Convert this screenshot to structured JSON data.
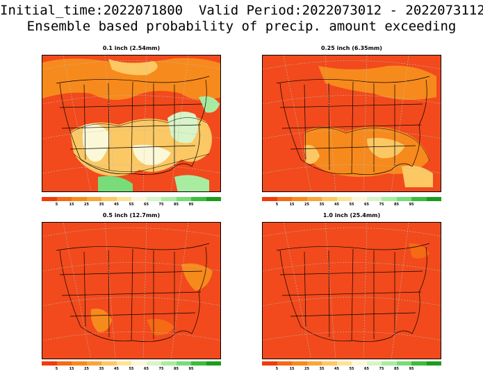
{
  "header": {
    "line1": "Initial_time:2022071800  Valid Period:2022073012 - 2022073112",
    "line2": "Ensemble based probability of precip. amount exceeding"
  },
  "colorbar": {
    "colors": [
      "#f03c0c",
      "#f56a14",
      "#f78a1c",
      "#f9a63a",
      "#fbc864",
      "#fbe496",
      "#fbf8d8",
      "#d8f4c8",
      "#a8eca0",
      "#78dc78",
      "#3cbc3c",
      "#1c9c1c"
    ],
    "labels": [
      "5",
      "15",
      "25",
      "35",
      "45",
      "55",
      "65",
      "75",
      "85",
      "95"
    ]
  },
  "panels": [
    {
      "title": "0.1 inch (2.54mm)",
      "wet_level": "high"
    },
    {
      "title": "0.25 inch (6.35mm)",
      "wet_level": "medium"
    },
    {
      "title": "0.5 inch (12.7mm)",
      "wet_level": "low"
    },
    {
      "title": "1.0 inch (25.4mm)",
      "wet_level": "very-low"
    }
  ]
}
